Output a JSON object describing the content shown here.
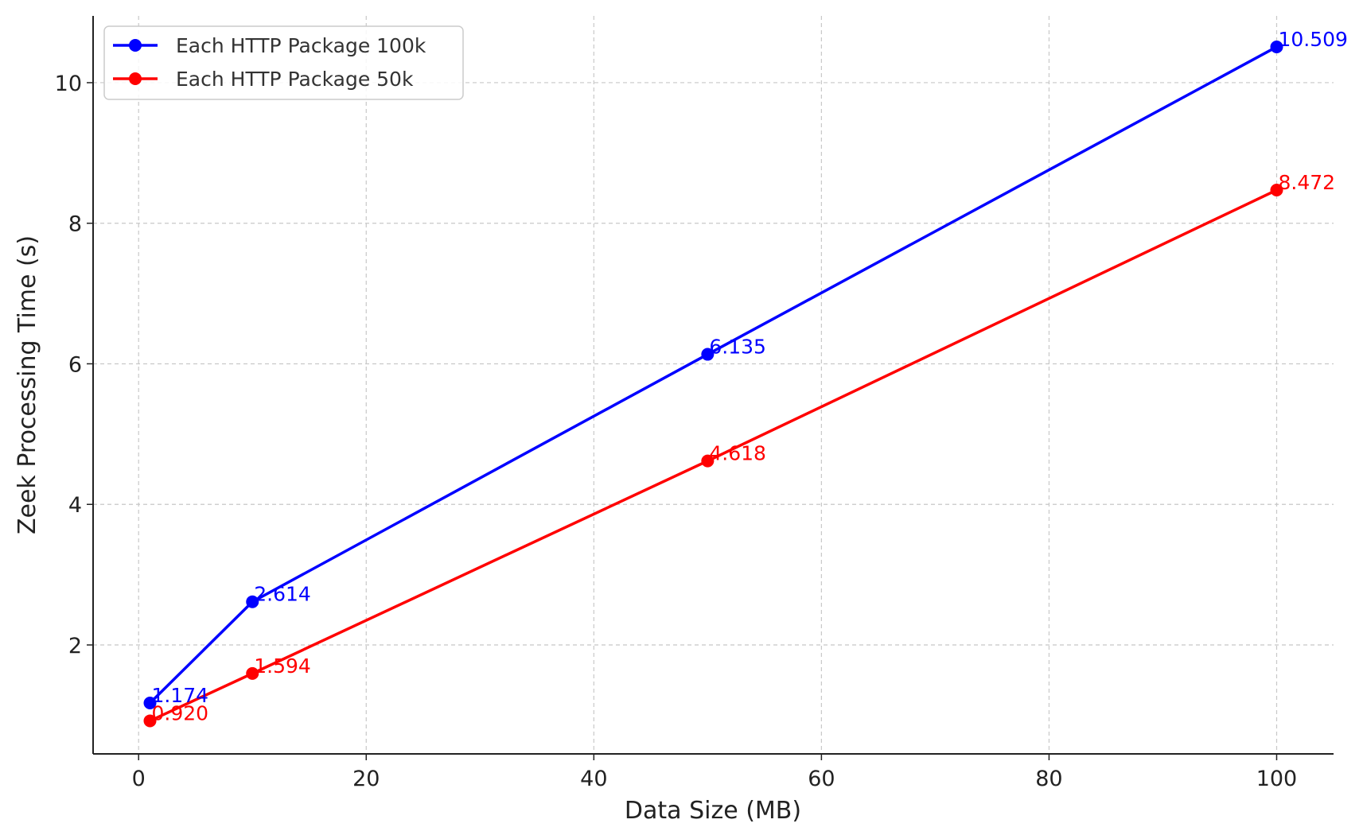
{
  "chart_data": {
    "type": "line",
    "title": "",
    "xlabel": "Data Size (MB)",
    "ylabel": "Zeek Processing Time (s)",
    "xlim": [
      -4,
      105
    ],
    "ylim": [
      0.45,
      10.95
    ],
    "x_ticks": [
      0,
      20,
      40,
      60,
      80,
      100
    ],
    "y_ticks": [
      2,
      4,
      6,
      8,
      10
    ],
    "grid": true,
    "legend_position": "top-left",
    "series": [
      {
        "name": "Each HTTP Package 100k",
        "color": "#0000ff",
        "x": [
          1,
          10,
          50,
          100
        ],
        "y": [
          1.174,
          2.614,
          6.135,
          10.509
        ],
        "labels": [
          "1.174",
          "2.614",
          "6.135",
          "10.509"
        ]
      },
      {
        "name": "Each HTTP Package 50k",
        "color": "#ff0000",
        "x": [
          1,
          10,
          50,
          100
        ],
        "y": [
          0.92,
          1.594,
          4.618,
          8.472
        ],
        "labels": [
          "0.920",
          "1.594",
          "4.618",
          "8.472"
        ]
      }
    ]
  }
}
